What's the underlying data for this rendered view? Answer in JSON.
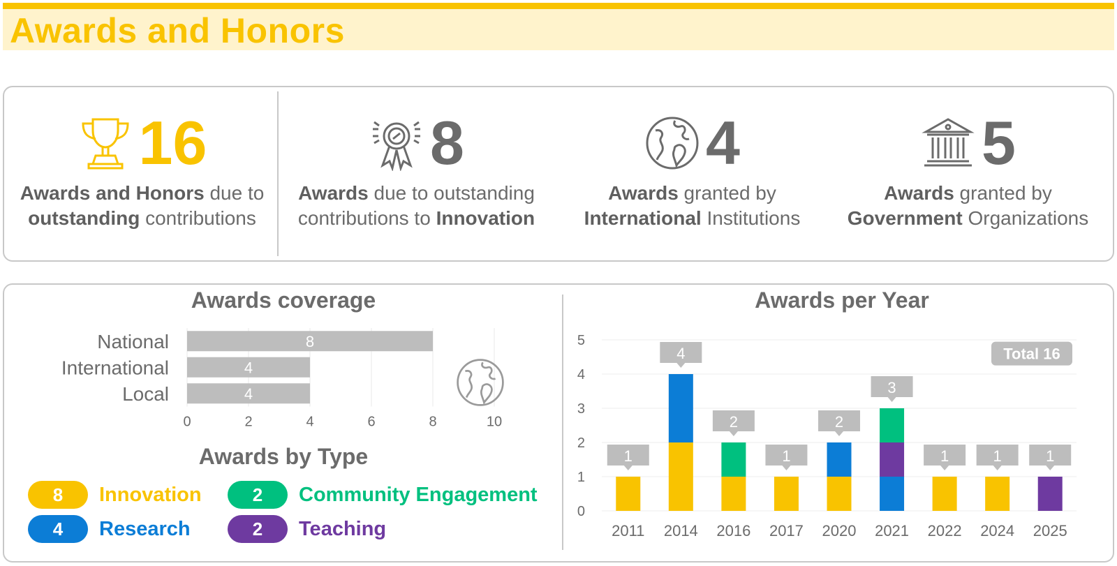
{
  "header": {
    "title": "Awards and Honors"
  },
  "stats": [
    {
      "value": "16",
      "icon": "trophy-icon",
      "color": "#f9c300",
      "desc_pre": "Awards and Honors",
      "desc_mid": " due to",
      "desc_line2_bold": "outstanding",
      "desc_line2": " contributions"
    },
    {
      "value": "8",
      "icon": "ribbon-medal-icon",
      "color": "#6b6b6b",
      "desc_pre": "Awards",
      "desc_mid": " due to outstanding",
      "desc_line2_pre": "contributions to ",
      "desc_line2_bold": "Innovation"
    },
    {
      "value": "4",
      "icon": "globe-icon",
      "color": "#6b6b6b",
      "desc_pre": "Awards",
      "desc_mid": " granted by",
      "desc_line2_bold": "International",
      "desc_line2": " Institutions"
    },
    {
      "value": "5",
      "icon": "government-building-icon",
      "color": "#6b6b6b",
      "desc_pre": "Awards",
      "desc_mid": " granted by",
      "desc_line2_bold": "Government",
      "desc_line2": " Organizations"
    }
  ],
  "coverage_title": "Awards coverage",
  "type_title": "Awards by Type",
  "per_year_title": "Awards per Year",
  "total_badge": "Total 16",
  "awards_by_type": [
    {
      "label": "Innovation",
      "count": "8",
      "color": "#f9c300"
    },
    {
      "label": "Community Engagement",
      "count": "2",
      "color": "#00c07f"
    },
    {
      "label": "Research",
      "count": "4",
      "color": "#0c7dd6"
    },
    {
      "label": "Teaching",
      "count": "2",
      "color": "#6e3aa0"
    }
  ],
  "chart_data": [
    {
      "type": "bar",
      "orientation": "horizontal",
      "title": "Awards coverage",
      "categories": [
        "National",
        "International",
        "Local"
      ],
      "values": [
        8,
        4,
        4
      ],
      "xlim": [
        0,
        10
      ],
      "xticks": [
        0,
        2,
        4,
        6,
        8,
        10
      ],
      "bar_color": "#bdbdbd",
      "grid": true
    },
    {
      "type": "bar",
      "stacked": true,
      "title": "Awards per Year",
      "categories": [
        "2011",
        "2014",
        "2016",
        "2017",
        "2020",
        "2021",
        "2022",
        "2024",
        "2025"
      ],
      "series": [
        {
          "name": "Innovation",
          "color": "#f9c300",
          "values": [
            1,
            2,
            1,
            1,
            1,
            0,
            1,
            1,
            0
          ]
        },
        {
          "name": "Research",
          "color": "#0c7dd6",
          "values": [
            0,
            2,
            0,
            0,
            1,
            1,
            0,
            0,
            0
          ]
        },
        {
          "name": "Teaching",
          "color": "#6e3aa0",
          "values": [
            0,
            0,
            0,
            0,
            0,
            1,
            0,
            0,
            1
          ]
        },
        {
          "name": "Community Engagement",
          "color": "#00c07f",
          "values": [
            0,
            0,
            1,
            0,
            0,
            1,
            0,
            0,
            0
          ]
        }
      ],
      "totals": [
        1,
        4,
        2,
        1,
        2,
        3,
        1,
        1,
        1
      ],
      "ylim": [
        0,
        5
      ],
      "yticks": [
        0,
        1,
        2,
        3,
        4,
        5
      ],
      "grid": true,
      "annotation": "Total 16"
    }
  ]
}
